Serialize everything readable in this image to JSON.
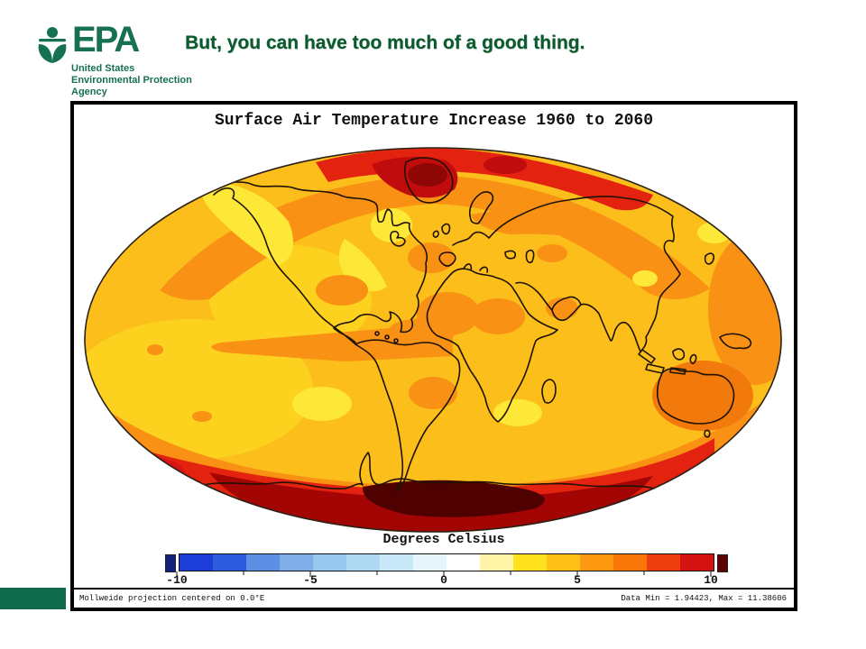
{
  "slide": {
    "headline": "But, you can have too much of a good thing."
  },
  "epa": {
    "logo": "EPA",
    "org_lines": [
      "United States",
      "Environmental Protection",
      "Agency"
    ]
  },
  "figure": {
    "title": "Surface Air Temperature Increase 1960 to 2060",
    "colorbar": {
      "label": "Degrees Celsius",
      "ticks": [
        "-10",
        "-5",
        "0",
        "5",
        "10"
      ],
      "segments": [
        "#1C3DD8",
        "#2F5CDF",
        "#5E8FE4",
        "#7FAEEA",
        "#98C7EF",
        "#AFD9F3",
        "#C8E8F7",
        "#E6F4FB",
        "#FFFFFF",
        "#FFF4A6",
        "#FFE11E",
        "#FFBF17",
        "#FD9A12",
        "#F97708",
        "#EE3D0E",
        "#D51212"
      ],
      "under_color": "#10207D",
      "over_color": "#5C0404"
    },
    "footer_left": "Mollweide projection centered on 0.0°E",
    "footer_right": "Data Min = 1.94423, Max = 11.38606"
  },
  "palette": {
    "greenLogo": "#15714F",
    "greenHeadline": "#0B5B2F",
    "greenBar": "#0F6A4B",
    "mapBase": "#FCBE1A",
    "mapMidYellow": "#FDD21F",
    "mapYellow": "#FEE837",
    "mapOrange": "#F89114",
    "mapDeepOrange": "#F2790C",
    "mapRed": "#E32310",
    "mapBrightRed": "#D81414",
    "mapDarkRed": "#A30505",
    "mapBandRed": "#C00C0C",
    "mapDeeperRed": "#8F0606",
    "mapMaroon": "#4F0000",
    "coast": "#1E1202",
    "cbUnder": "#10207D",
    "cbOver": "#5C0404"
  }
}
